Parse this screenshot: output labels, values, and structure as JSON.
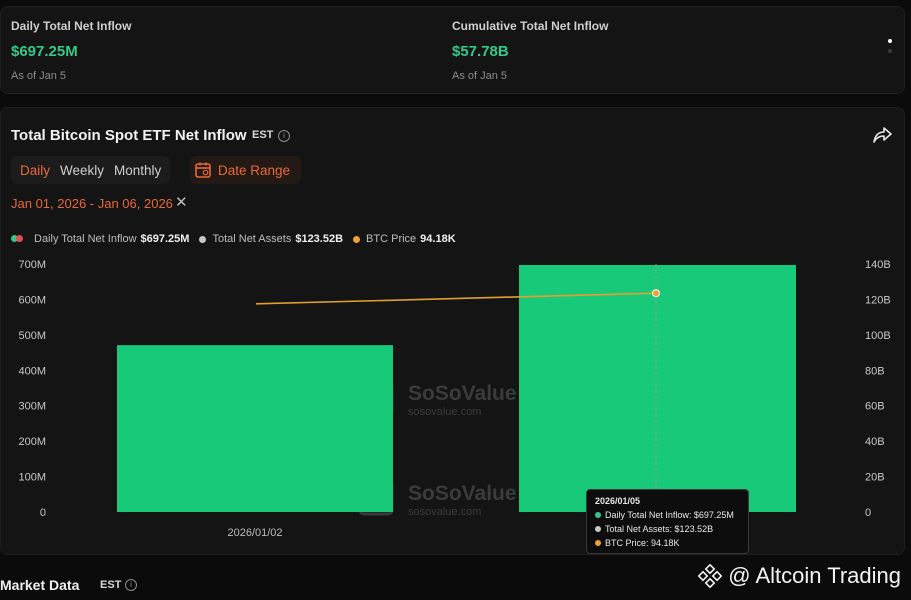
{
  "summary": {
    "daily": {
      "label": "Daily Total Net Inflow",
      "value": "$697.25M",
      "as_of": "As of Jan 5"
    },
    "cumulative": {
      "label": "Cumulative Total Net Inflow",
      "value": "$57.78B",
      "as_of": "As of Jan 5"
    }
  },
  "chart_panel": {
    "title": "Total Bitcoin Spot ETF Net Inflow",
    "timezone": "EST",
    "tabs": [
      {
        "label": "Daily",
        "active": true
      },
      {
        "label": "Weekly",
        "active": false
      },
      {
        "label": "Monthly",
        "active": false
      }
    ],
    "date_range_button": "Date Range",
    "selected_range": "Jan 01, 2026 - Jan 06, 2026",
    "legend": [
      {
        "label": "Daily Total Net Inflow",
        "value": "$697.25M"
      },
      {
        "label": "Total Net Assets",
        "value": "$123.52B"
      },
      {
        "label": "BTC Price",
        "value": "94.18K"
      }
    ]
  },
  "tooltip": {
    "date": "2026/01/05",
    "rows": [
      {
        "label": "Daily Total Net Inflow:",
        "value": "$697.25M",
        "color": "#34c98a"
      },
      {
        "label": "Total Net Assets:",
        "value": "$123.52B",
        "color": "#c8c8c8"
      },
      {
        "label": "BTC Price:",
        "value": "94.18K",
        "color": "#f0a030"
      }
    ]
  },
  "watermark": {
    "brand": "SoSoValue",
    "site": "sosovalue.com"
  },
  "market_data": {
    "title": "Market Data",
    "timezone": "EST"
  },
  "corner_brand": "@ Altcoin Trading",
  "colors": {
    "accent": "#e8693a",
    "inflow": "#19c97a",
    "line": "#e0a030",
    "dot_red": "#e05050",
    "dot_green": "#34c98a",
    "dot_gray": "#c8c8c8",
    "dot_orange": "#f0a030"
  },
  "chart_data": {
    "type": "bar",
    "categories": [
      "2026/01/02",
      "2026/01/05"
    ],
    "x_tick_labels": [
      "2026/01/02",
      ""
    ],
    "series": [
      {
        "name": "Daily Total Net Inflow",
        "axis": "left",
        "unit": "M",
        "values": [
          471,
          697.25
        ]
      },
      {
        "name": "Total Net Assets",
        "axis": "right",
        "type": "line",
        "unit": "B",
        "values": [
          117.5,
          123.52
        ]
      }
    ],
    "left_axis": {
      "ticks": [
        "0",
        "100M",
        "200M",
        "300M",
        "400M",
        "500M",
        "600M",
        "700M"
      ],
      "ylim": [
        0,
        700
      ]
    },
    "right_axis": {
      "ticks": [
        "0",
        "20B",
        "40B",
        "60B",
        "80B",
        "100B",
        "120B",
        "140B"
      ],
      "ylim": [
        0,
        140
      ]
    },
    "grid": false,
    "legend_position": "top-left"
  }
}
